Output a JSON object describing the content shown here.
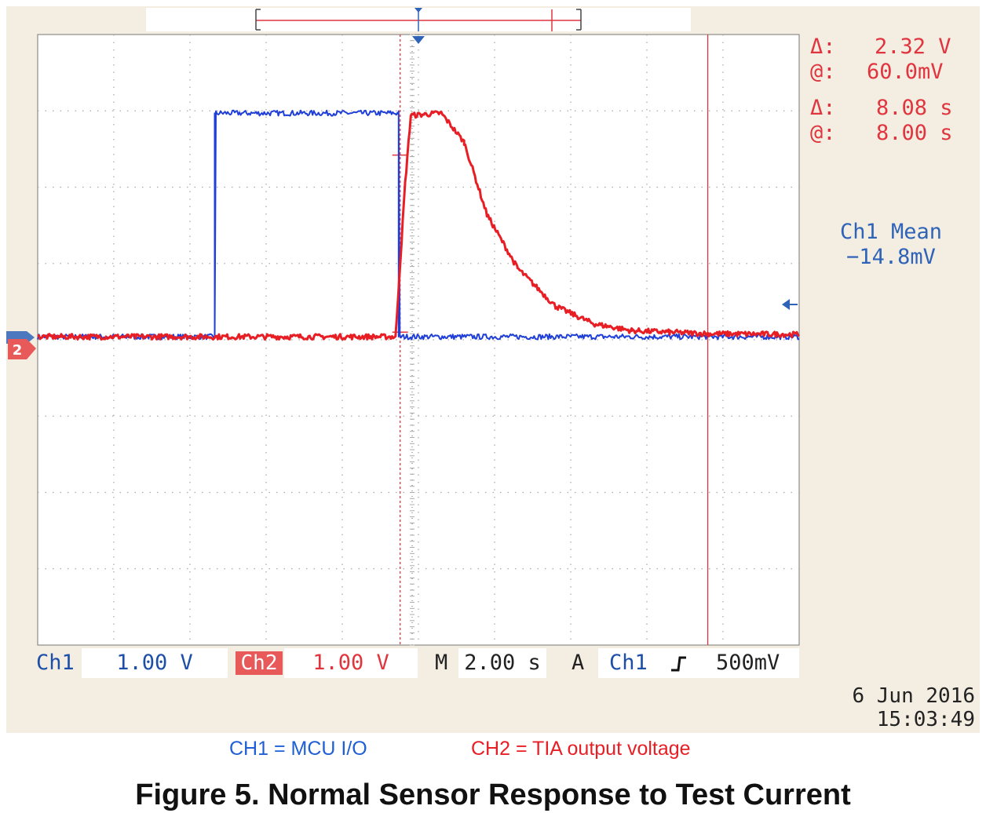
{
  "colors": {
    "ch1": "#1f3fd8",
    "ch2": "#e81e25",
    "cursor": "#e0353e",
    "grid": "#aaaaaa"
  },
  "cursor_readouts": {
    "delta_v_label": "Δ:",
    "delta_v_value": "2.32 V",
    "at_v_label": "@:",
    "at_v_value": "60.0mV",
    "delta_t_label": "Δ:",
    "delta_t_value": "8.08 s",
    "at_t_label": "@:",
    "at_t_value": "8.00 s"
  },
  "measurement": {
    "label": "Ch1 Mean",
    "value": "−14.8mV"
  },
  "channel_marker": "2",
  "status_bar": {
    "ch1_label": "Ch1",
    "ch1_scale": "1.00 V",
    "ch2_label": "Ch2",
    "ch2_scale": "1.00 V",
    "timebase_label": "M",
    "timebase_value": "2.00 s",
    "trigger_label": "A",
    "trigger_source": "Ch1",
    "trigger_slope": "rising-edge-icon",
    "trigger_level": "500mV"
  },
  "timestamp": {
    "date": "6 Jun  2016",
    "time": "15:03:49"
  },
  "legend": {
    "ch1": "CH1 = MCU I/O",
    "ch2": "CH2 = TIA output voltage"
  },
  "caption": "Figure 5. Normal Sensor Response to Test Current",
  "chart_data": {
    "type": "line",
    "grid": true,
    "x_divisions": 10,
    "y_divisions": 8,
    "xlim": [
      -9.6,
      10.4
    ],
    "ylim": [
      -4.04,
      3.96
    ],
    "x_unit": "s",
    "y_unit": "V",
    "series": [
      {
        "name": "CH1 = MCU I/O",
        "x": [
          -9.6,
          -4.95,
          -4.95,
          -0.12,
          -0.12,
          10.4
        ],
        "y": [
          0,
          0,
          2.93,
          2.93,
          0,
          0
        ]
      },
      {
        "name": "CH2 = TIA output voltage",
        "x": [
          -9.6,
          -0.2,
          0.05,
          0.2,
          1.0,
          1.6,
          2.2,
          3.0,
          4.0,
          5.0,
          6.0,
          7.0,
          8.0,
          10.4
        ],
        "y": [
          0,
          0,
          2.0,
          2.9,
          2.93,
          2.55,
          1.6,
          0.9,
          0.4,
          0.17,
          0.08,
          0.06,
          0.04,
          0.03
        ]
      }
    ],
    "cursors": {
      "vertical_x": [
        -0.08,
        8.0
      ],
      "horizontal_y": [
        0.06,
        2.38
      ]
    },
    "trigger_x": 0,
    "trigger_level": 0.5
  }
}
